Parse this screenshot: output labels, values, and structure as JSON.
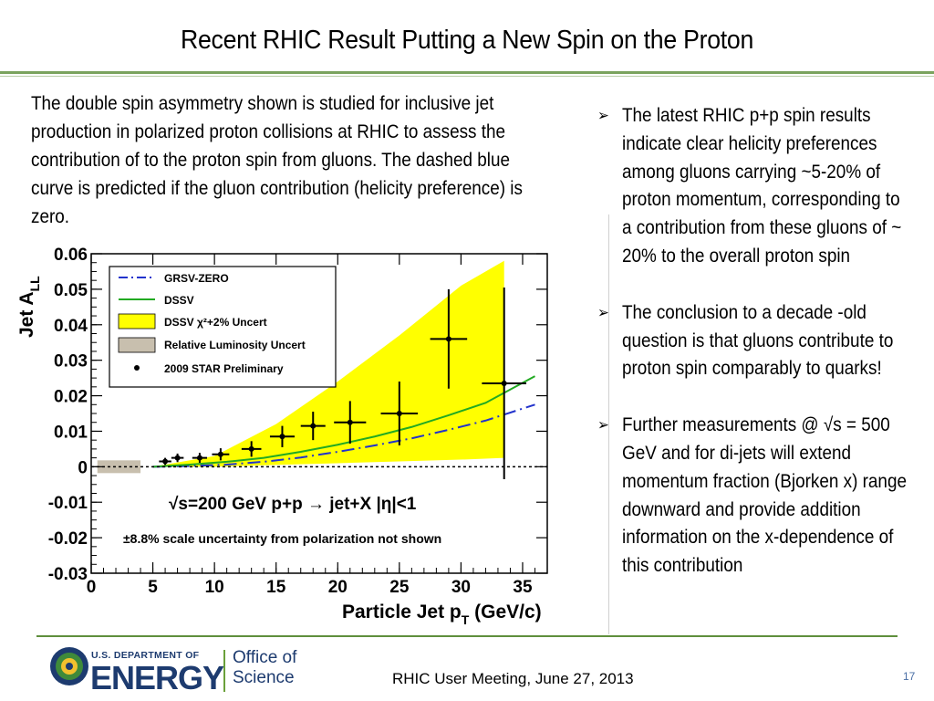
{
  "slide": {
    "title": "Recent RHIC Result Putting a New Spin on the Proton",
    "description": "The double spin asymmetry shown is  studied  for inclusive jet production in polarized proton collisions at RHIC to assess the contribution of to the proton spin from gluons. The dashed blue curve is predicted if the gluon contribution (helicity preference) is zero.",
    "bullet_marker": "➢",
    "bullets": [
      "The latest RHIC p+p spin results indicate clear helicity preferences among gluons carrying ~5-20% of proton momentum, corresponding to a contribution from these gluons of ~ 20% to the overall proton spin",
      "The conclusion to a decade -old question is that gluons contribute to proton spin comparably to quarks!",
      "Further measurements @ √s = 500 GeV and for di-jets will extend momentum fraction (Bjorken x) range downward and provide addition information on the x-dependence of this contribution"
    ],
    "footer": {
      "doe_small": "U.S. DEPARTMENT OF",
      "doe_big": "ENERGY",
      "office_line1": "Office of",
      "office_line2": "Science",
      "meeting": "RHIC User Meeting, June 27, 2013",
      "page_number": "17"
    }
  },
  "chart_data": {
    "type": "scatter",
    "xlabel": "Particle Jet p",
    "xlabel_sub": "T",
    "xlabel_unit": " (GeV/c)",
    "ylabel": "Jet A",
    "ylabel_sub": "LL",
    "xlim": [
      0,
      37
    ],
    "ylim": [
      -0.03,
      0.06
    ],
    "x_ticks": [
      "0",
      "5",
      "10",
      "15",
      "20",
      "25",
      "30",
      "35"
    ],
    "y_ticks": [
      "-0.03",
      "-0.02",
      "-0.01",
      "0",
      "0.01",
      "0.02",
      "0.03",
      "0.04",
      "0.05",
      "0.06"
    ],
    "legend_position": "top-left",
    "legend": [
      "GRSV-ZERO",
      "DSSV",
      "DSSV χ²+2% Uncert",
      "Relative Luminosity Uncert",
      "2009 STAR Preliminary"
    ],
    "annotation_process": "√s=200 GeV   p+p → jet+X   |η|<1",
    "annotation_scale": "±8.8% scale uncertainty from polarization not shown",
    "colors": {
      "grsv": "#2233cc",
      "dssv": "#22aa22",
      "band": "#ffff00",
      "lumi": "#c8bfae",
      "points": "#000000"
    },
    "series": [
      {
        "name": "2009 STAR Preliminary",
        "points": [
          {
            "x": 6.0,
            "y": 0.0015,
            "xerr": 0.5,
            "yerr": 0.001
          },
          {
            "x": 7.0,
            "y": 0.0025,
            "xerr": 0.5,
            "yerr": 0.0012
          },
          {
            "x": 8.8,
            "y": 0.0025,
            "xerr": 0.6,
            "yerr": 0.0014
          },
          {
            "x": 10.5,
            "y": 0.0035,
            "xerr": 0.7,
            "yerr": 0.0017
          },
          {
            "x": 13.0,
            "y": 0.005,
            "xerr": 0.8,
            "yerr": 0.0022
          },
          {
            "x": 15.5,
            "y": 0.0085,
            "xerr": 1.0,
            "yerr": 0.003
          },
          {
            "x": 18.0,
            "y": 0.0115,
            "xerr": 1.0,
            "yerr": 0.004
          },
          {
            "x": 21.0,
            "y": 0.0125,
            "xerr": 1.3,
            "yerr": 0.006
          },
          {
            "x": 25.0,
            "y": 0.015,
            "xerr": 1.5,
            "yerr": 0.009
          },
          {
            "x": 29.0,
            "y": 0.036,
            "xerr": 1.5,
            "yerr": 0.014
          },
          {
            "x": 33.5,
            "y": 0.0235,
            "xerr": 1.8,
            "yerr": 0.027
          }
        ]
      },
      {
        "name": "DSSV",
        "x": [
          5,
          8,
          11,
          14,
          17,
          20,
          23,
          26,
          29,
          32,
          36
        ],
        "y": [
          0.0,
          0.0006,
          0.0014,
          0.0025,
          0.0042,
          0.0062,
          0.0085,
          0.0112,
          0.0145,
          0.018,
          0.0255
        ]
      },
      {
        "name": "GRSV-ZERO",
        "x": [
          5,
          8,
          11,
          14,
          17,
          20,
          23,
          26,
          29,
          32,
          36
        ],
        "y": [
          0.0,
          0.0002,
          0.0006,
          0.0014,
          0.0026,
          0.0042,
          0.006,
          0.008,
          0.0104,
          0.013,
          0.0175
        ]
      },
      {
        "name": "DSSV χ²+2% Uncert",
        "x": [
          5,
          10,
          15,
          20,
          25,
          30,
          33.5
        ],
        "upper": [
          0.0,
          0.003,
          0.012,
          0.024,
          0.037,
          0.051,
          0.058
        ],
        "lower": [
          0.0,
          0.0,
          0.0005,
          0.001,
          0.0015,
          0.002,
          0.0025
        ]
      }
    ],
    "lumi_box": {
      "x": [
        0.5,
        4.0
      ],
      "y": [
        -0.0018,
        0.0018
      ]
    }
  }
}
